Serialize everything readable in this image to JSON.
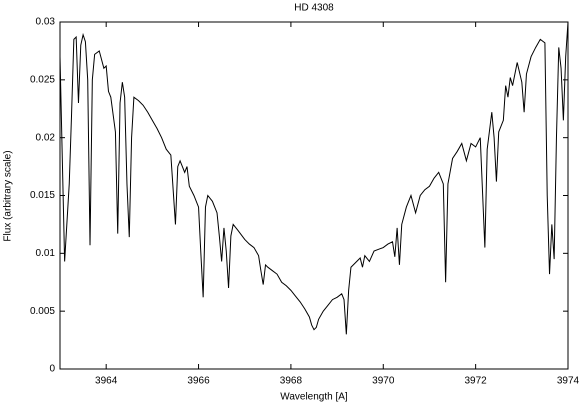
{
  "chart_data": {
    "type": "line",
    "title": "HD 4308",
    "x_label": "Wavelength [A]",
    "y_label": "Flux (arbitrary scale)",
    "x": [
      3963.0,
      3963.1,
      3963.2,
      3963.25,
      3963.3,
      3963.35,
      3963.4,
      3963.45,
      3963.5,
      3963.55,
      3963.6,
      3963.65,
      3963.7,
      3963.75,
      3963.85,
      3963.95,
      3964.0,
      3964.05,
      3964.1,
      3964.2,
      3964.25,
      3964.3,
      3964.35,
      3964.4,
      3964.45,
      3964.5,
      3964.55,
      3964.6,
      3964.7,
      3964.8,
      3964.9,
      3965.0,
      3965.1,
      3965.2,
      3965.3,
      3965.4,
      3965.45,
      3965.5,
      3965.55,
      3965.6,
      3965.7,
      3965.75,
      3965.8,
      3965.9,
      3966.0,
      3966.05,
      3966.1,
      3966.15,
      3966.2,
      3966.3,
      3966.4,
      3966.45,
      3966.5,
      3966.55,
      3966.6,
      3966.65,
      3966.7,
      3966.75,
      3966.85,
      3967.0,
      3967.1,
      3967.2,
      3967.3,
      3967.35,
      3967.4,
      3967.45,
      3967.5,
      3967.6,
      3967.7,
      3967.8,
      3967.9,
      3968.0,
      3968.1,
      3968.2,
      3968.3,
      3968.4,
      3968.45,
      3968.5,
      3968.55,
      3968.6,
      3968.7,
      3968.8,
      3968.9,
      3969.0,
      3969.1,
      3969.15,
      3969.2,
      3969.25,
      3969.3,
      3969.4,
      3969.5,
      3969.55,
      3969.6,
      3969.7,
      3969.8,
      3970.0,
      3970.1,
      3970.2,
      3970.25,
      3970.3,
      3970.35,
      3970.4,
      3970.5,
      3970.6,
      3970.7,
      3970.8,
      3970.9,
      3971.0,
      3971.1,
      3971.2,
      3971.3,
      3971.35,
      3971.4,
      3971.5,
      3971.6,
      3971.7,
      3971.8,
      3971.9,
      3972.0,
      3972.1,
      3972.2,
      3972.25,
      3972.35,
      3972.4,
      3972.45,
      3972.5,
      3972.6,
      3972.65,
      3972.7,
      3972.75,
      3972.8,
      3972.9,
      3973.0,
      3973.05,
      3973.1,
      3973.2,
      3973.3,
      3973.4,
      3973.5,
      3973.55,
      3973.6,
      3973.65,
      3973.7,
      3973.75,
      3973.8,
      3973.85,
      3973.9,
      3973.95,
      3974.0
    ],
    "series": [
      {
        "color": "#000000",
        "values": [
          0.027,
          0.0093,
          0.016,
          0.022,
          0.0285,
          0.0287,
          0.023,
          0.028,
          0.0289,
          0.0283,
          0.025,
          0.0107,
          0.025,
          0.0272,
          0.0275,
          0.026,
          0.0262,
          0.024,
          0.0235,
          0.0205,
          0.0117,
          0.023,
          0.0248,
          0.0235,
          0.016,
          0.0114,
          0.02,
          0.0235,
          0.0232,
          0.0228,
          0.0222,
          0.0215,
          0.0208,
          0.02,
          0.019,
          0.0185,
          0.0155,
          0.0125,
          0.0175,
          0.018,
          0.017,
          0.0175,
          0.0158,
          0.015,
          0.014,
          0.01,
          0.0062,
          0.014,
          0.015,
          0.0145,
          0.0135,
          0.0115,
          0.0093,
          0.0122,
          0.0102,
          0.007,
          0.0115,
          0.0125,
          0.012,
          0.0112,
          0.0108,
          0.0105,
          0.0098,
          0.0085,
          0.0073,
          0.009,
          0.0088,
          0.0085,
          0.0082,
          0.0075,
          0.0072,
          0.0068,
          0.0063,
          0.0058,
          0.0052,
          0.0045,
          0.0038,
          0.0034,
          0.0036,
          0.0043,
          0.005,
          0.0055,
          0.006,
          0.0062,
          0.0065,
          0.006,
          0.003,
          0.0068,
          0.0088,
          0.0092,
          0.0096,
          0.0088,
          0.0098,
          0.0093,
          0.0102,
          0.0105,
          0.0108,
          0.011,
          0.0097,
          0.0122,
          0.009,
          0.0125,
          0.014,
          0.015,
          0.0135,
          0.015,
          0.0155,
          0.0158,
          0.0165,
          0.017,
          0.016,
          0.0075,
          0.016,
          0.0182,
          0.0188,
          0.0195,
          0.018,
          0.0195,
          0.0192,
          0.02,
          0.0105,
          0.019,
          0.0222,
          0.02,
          0.0162,
          0.0205,
          0.0215,
          0.0245,
          0.0235,
          0.0252,
          0.0245,
          0.0265,
          0.0248,
          0.0222,
          0.0255,
          0.027,
          0.0278,
          0.0285,
          0.0282,
          0.015,
          0.0082,
          0.0125,
          0.0095,
          0.02,
          0.0278,
          0.026,
          0.0215,
          0.027,
          0.03
        ]
      }
    ],
    "xlim": [
      3963,
      3974
    ],
    "xticks": [
      3964,
      3966,
      3968,
      3970,
      3972,
      3974
    ],
    "ylim": [
      0,
      0.03
    ],
    "yticks": [
      0,
      0.005,
      0.01,
      0.015,
      0.02,
      0.025,
      0.03
    ]
  }
}
